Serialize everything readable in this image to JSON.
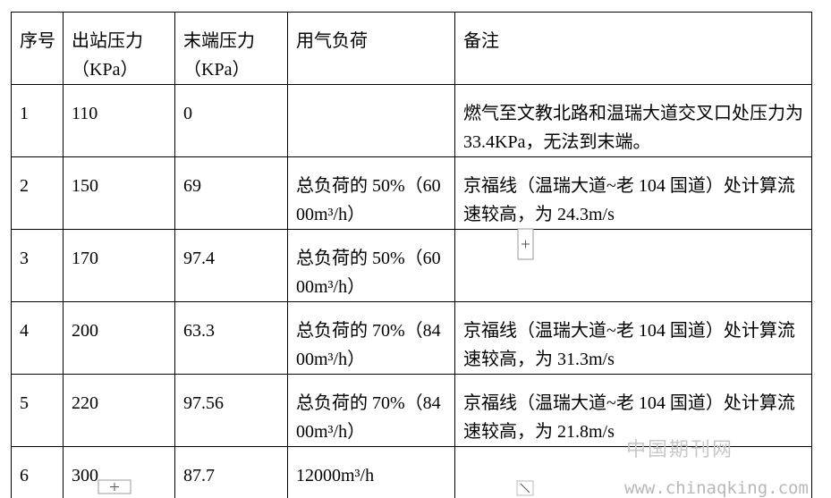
{
  "table": {
    "header": [
      "序号",
      "出站压力（KPa）",
      "末端压力（KPa）",
      "用气负荷",
      "备注"
    ],
    "rows": [
      [
        "1",
        "110",
        "0",
        "",
        "燃气至文教北路和温瑞大道交叉口处压力为 33.4KPa，无法到末端。"
      ],
      [
        "2",
        "150",
        "69",
        "总负荷的 50%（6000m³/h）",
        "京福线（温瑞大道~老 104 国道）处计算流速较高，为 24.3m/s"
      ],
      [
        "3",
        "170",
        "97.4",
        "总负荷的 50%（6000m³/h）",
        ""
      ],
      [
        "4",
        "200",
        "63.3",
        "总负荷的 70%（8400m³/h）",
        "京福线（温瑞大道~老 104 国道）处计算流速较高，为 31.3m/s"
      ],
      [
        "5",
        "220",
        "97.56",
        "总负荷的 70%（8400m³/h）",
        "京福线（温瑞大道~老 104 国道）处计算流速较高，为 21.8m/s"
      ],
      [
        "6",
        "300",
        "87.7",
        "12000m³/h",
        ""
      ]
    ]
  },
  "watermark": {
    "cn": "中国期刊网",
    "url": "www.chinaqking.com"
  }
}
